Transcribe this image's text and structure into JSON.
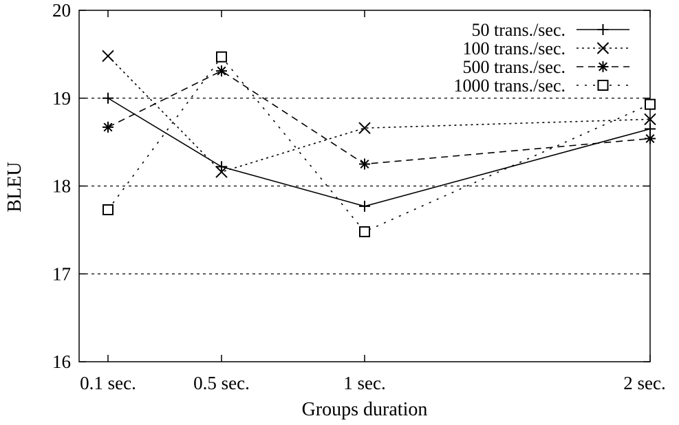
{
  "chart_data": {
    "type": "line",
    "title": "",
    "xlabel": "Groups duration",
    "ylabel": "BLEU",
    "x": [
      0.1,
      0.5,
      1,
      2
    ],
    "x_tick_labels": [
      "0.1 sec.",
      "0.5 sec.",
      "1 sec.",
      "2 sec."
    ],
    "ylim": [
      16,
      20
    ],
    "y_ticks": [
      16,
      17,
      18,
      19,
      20
    ],
    "y_tick_labels": [
      "16",
      "17",
      "18",
      "19",
      "20"
    ],
    "grid": "horizontal dashed at 17, 18, 19",
    "legend_position": "top-right",
    "series": [
      {
        "name": "50 trans./sec.",
        "values": [
          19.0,
          18.22,
          17.77,
          18.65
        ],
        "marker": "plus",
        "dash": "solid"
      },
      {
        "name": "100 trans./sec.",
        "values": [
          19.48,
          18.16,
          18.66,
          18.76
        ],
        "marker": "cross",
        "dash": "dotted"
      },
      {
        "name": "500 trans./sec.",
        "values": [
          18.67,
          19.31,
          18.25,
          18.54
        ],
        "marker": "star",
        "dash": "dashed"
      },
      {
        "name": "1000 trans./sec.",
        "values": [
          17.73,
          19.47,
          17.48,
          18.93
        ],
        "marker": "square",
        "dash": "sparse-dotted"
      }
    ]
  }
}
